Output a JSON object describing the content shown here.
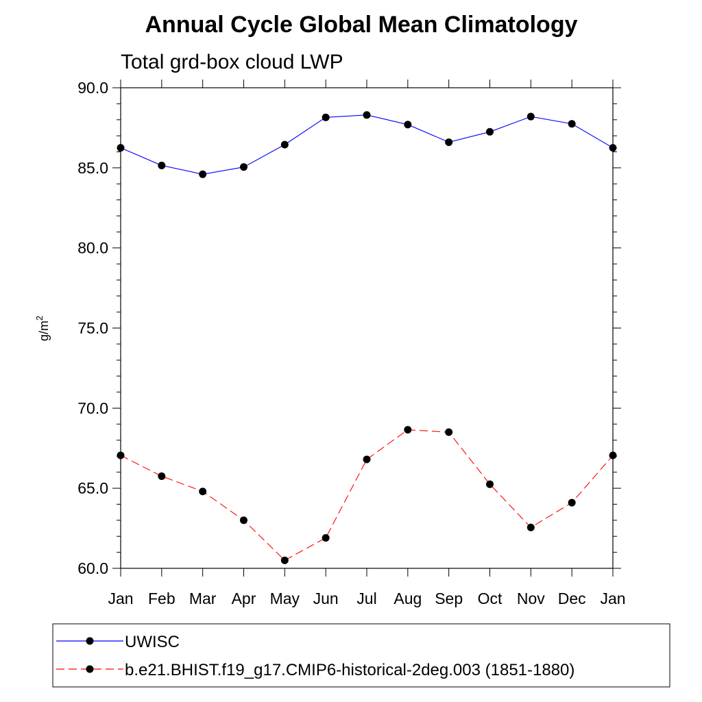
{
  "chart_data": {
    "type": "line",
    "title": "Annual Cycle Global Mean Climatology",
    "subtitle": "Total grd-box cloud LWP",
    "ylabel": "g/m",
    "ylabel_superscript": "2",
    "xlabel": "",
    "categories": [
      "Jan",
      "Feb",
      "Mar",
      "Apr",
      "May",
      "Jun",
      "Jul",
      "Aug",
      "Sep",
      "Oct",
      "Nov",
      "Dec",
      "Jan"
    ],
    "ylim": [
      60.0,
      90.0
    ],
    "yticks": [
      "60.0",
      "65.0",
      "70.0",
      "75.0",
      "80.0",
      "85.0",
      "90.0"
    ],
    "grid": false,
    "legend_position": "bottom",
    "series": [
      {
        "name": "UWISC",
        "color": "#0000ff",
        "dash": "solid",
        "marker": "filled-circle",
        "values": [
          86.25,
          85.15,
          84.6,
          85.05,
          86.45,
          88.15,
          88.3,
          87.7,
          86.6,
          87.25,
          88.2,
          87.75,
          86.25
        ]
      },
      {
        "name": "b.e21.BHIST.f19_g17.CMIP6-historical-2deg.003 (1851-1880)",
        "color": "#ff0000",
        "dash": "dashed",
        "marker": "filled-circle",
        "values": [
          67.05,
          65.75,
          64.8,
          63.0,
          60.5,
          61.9,
          66.8,
          68.65,
          68.5,
          65.25,
          62.55,
          64.1,
          67.05
        ]
      }
    ]
  }
}
